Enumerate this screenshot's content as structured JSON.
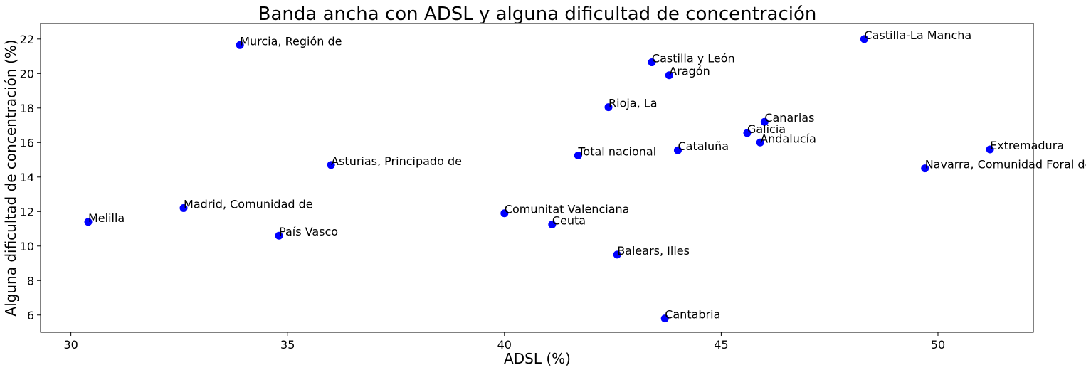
{
  "chart_data": {
    "type": "scatter",
    "title": "Banda ancha con ADSL y alguna dificultad de concentración",
    "xlabel": "ADSL (%)",
    "ylabel": "Alguna dificultad de concentración (%)",
    "xlim": [
      29.3,
      52.2
    ],
    "ylim": [
      5.0,
      22.9
    ],
    "xticks": [
      30,
      35,
      40,
      45,
      50
    ],
    "yticks": [
      6,
      8,
      10,
      12,
      14,
      16,
      18,
      20,
      22
    ],
    "grid": false,
    "marker_color": "#0000ff",
    "points": [
      {
        "label": "Murcia, Región de",
        "x": 33.9,
        "y": 21.65
      },
      {
        "label": "Castilla-La Mancha",
        "x": 48.3,
        "y": 22.0
      },
      {
        "label": "Castilla y León",
        "x": 43.4,
        "y": 20.65
      },
      {
        "label": "Aragón",
        "x": 43.8,
        "y": 19.9
      },
      {
        "label": "Rioja, La",
        "x": 42.4,
        "y": 18.05
      },
      {
        "label": "Canarias",
        "x": 46.0,
        "y": 17.2
      },
      {
        "label": "Galicia",
        "x": 45.6,
        "y": 16.55
      },
      {
        "label": "Andalucía",
        "x": 45.9,
        "y": 16.0
      },
      {
        "label": "Extremadura",
        "x": 51.2,
        "y": 15.6
      },
      {
        "label": "Cataluña",
        "x": 44.0,
        "y": 15.55
      },
      {
        "label": "Total nacional",
        "x": 41.7,
        "y": 15.25
      },
      {
        "label": "Asturias, Principado de",
        "x": 36.0,
        "y": 14.7
      },
      {
        "label": "Navarra, Comunidad Foral de",
        "x": 49.7,
        "y": 14.5
      },
      {
        "label": "Madrid, Comunidad de",
        "x": 32.6,
        "y": 12.2
      },
      {
        "label": "Comunitat Valenciana",
        "x": 40.0,
        "y": 11.9
      },
      {
        "label": "Melilla",
        "x": 30.4,
        "y": 11.4
      },
      {
        "label": "Ceuta",
        "x": 41.1,
        "y": 11.25
      },
      {
        "label": "País Vasco",
        "x": 34.8,
        "y": 10.6
      },
      {
        "label": "Balears, Illes",
        "x": 42.6,
        "y": 9.5
      },
      {
        "label": "Cantabria",
        "x": 43.7,
        "y": 5.8
      }
    ]
  }
}
